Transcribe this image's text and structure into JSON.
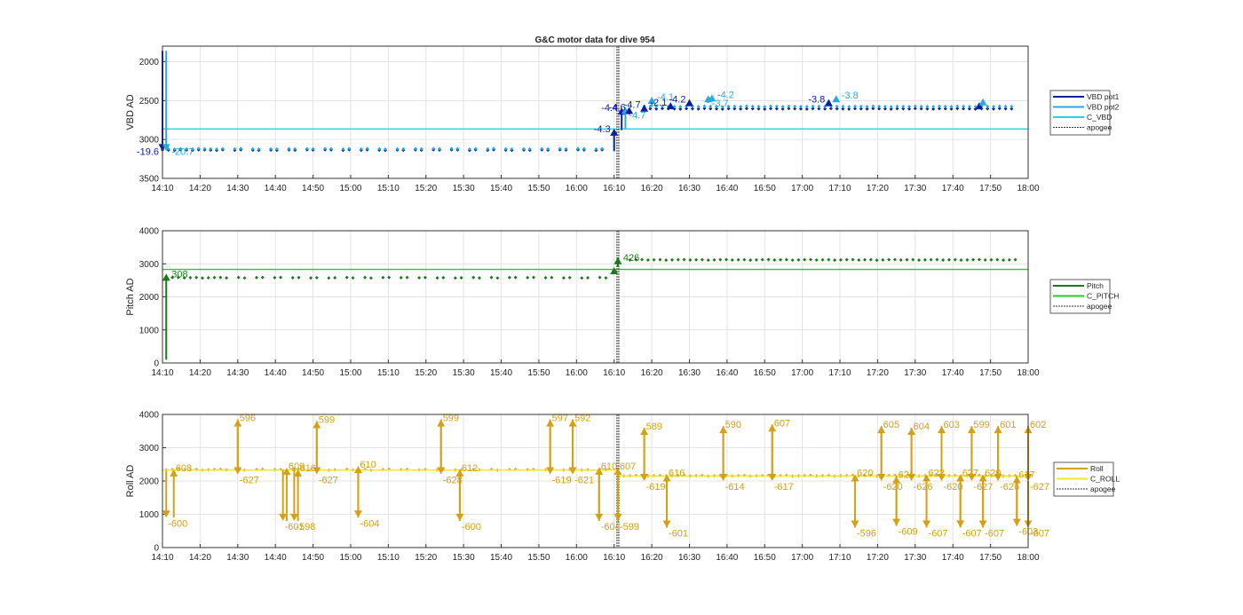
{
  "figure": {
    "title": "G&C motor data for dive 954"
  },
  "chart_data": [
    {
      "type": "scatter",
      "ylabel": "VBD AD",
      "ylim": [
        1800,
        3500
      ],
      "yreverse": true,
      "yticks": [
        2000,
        2500,
        3000,
        3500
      ],
      "xlim": [
        "14:10",
        "18:00"
      ],
      "xticks": [
        "14:10",
        "14:20",
        "14:30",
        "14:40",
        "14:50",
        "15:00",
        "15:10",
        "15:20",
        "15:30",
        "15:40",
        "15:50",
        "16:00",
        "16:10",
        "16:20",
        "16:30",
        "16:40",
        "16:50",
        "17:00",
        "17:10",
        "17:20",
        "17:30",
        "17:40",
        "17:50",
        "18:00"
      ],
      "grid": true,
      "legend_position": "outside-right",
      "series": [
        {
          "name": "VBD pot1",
          "color": "#0a1f9e",
          "kind": "points",
          "x_range": [
            "14:10",
            "17:57"
          ],
          "y_before": 3135,
          "y_after": 2605,
          "gaps": [
            "16:07",
            "16:17"
          ]
        },
        {
          "name": "VBD pot2",
          "color": "#29a9e0",
          "kind": "points",
          "x_range": [
            "14:10",
            "17:57"
          ],
          "y_before": 3120,
          "y_after": 2575,
          "gaps": [
            "16:07",
            "16:17"
          ]
        },
        {
          "name": "C_VBD",
          "color": "#22d3e4",
          "kind": "hline",
          "y": 2865
        },
        {
          "name": "apogee",
          "color": "#555555",
          "kind": "vline",
          "x": "16:11"
        }
      ],
      "arrows": [
        {
          "x": "14:10",
          "y1": 1860,
          "y2": 3150,
          "label": "-19.6",
          "color": "#0a1f9e",
          "label_side": "left"
        },
        {
          "x": "14:11",
          "y1": 1860,
          "y2": 3150,
          "label": "-20.7",
          "color": "#29a9e0",
          "label_side": "right"
        },
        {
          "x": "16:10",
          "y1": 3150,
          "y2": 2860,
          "label": "-4.3",
          "color": "#0a1f9e",
          "label_side": "left"
        },
        {
          "x": "16:12",
          "y1": 2880,
          "y2": 2590,
          "label": "-4.4",
          "color": "#0a1f9e",
          "label_side": "left"
        },
        {
          "x": "16:13",
          "y1": 2860,
          "y2": 2580,
          "label": "-4.7",
          "color": "#29a9e0",
          "label_side": "below"
        },
        {
          "x": "16:14",
          "y1": 2680,
          "y2": 2580,
          "label": "-4.6",
          "color": "#0a1f9e",
          "label_side": "left"
        },
        {
          "x": "16:18",
          "y1": 2640,
          "y2": 2550,
          "label": "-4.7",
          "color": "#0a1f9e",
          "label_side": "left"
        },
        {
          "x": "16:20",
          "y1": 2580,
          "y2": 2450,
          "label": "-4.1",
          "color": "#29a9e0",
          "label_side": "right"
        },
        {
          "x": "16:25",
          "y1": 2590,
          "y2": 2520,
          "label": "-2.1",
          "color": "#0a1f9e",
          "label_side": "left"
        },
        {
          "x": "16:30",
          "y1": 2560,
          "y2": 2480,
          "label": "-4.2",
          "color": "#0a1f9e",
          "label_side": "left"
        },
        {
          "x": "16:35",
          "y1": 2530,
          "y2": 2430,
          "label": "-3.7",
          "color": "#29a9e0",
          "label_side": "below"
        },
        {
          "x": "16:36",
          "y1": 2500,
          "y2": 2420,
          "label": "-4.2",
          "color": "#29a9e0",
          "label_side": "right"
        },
        {
          "x": "17:07",
          "y1": 2560,
          "y2": 2480,
          "label": "-3.8",
          "color": "#0a1f9e",
          "label_side": "left"
        },
        {
          "x": "17:09",
          "y1": 2520,
          "y2": 2430,
          "label": "-3.8",
          "color": "#29a9e0",
          "label_side": "right"
        },
        {
          "x": "17:47",
          "y1": 2600,
          "y2": 2520,
          "label": "",
          "color": "#0a1f9e",
          "label_side": "left"
        },
        {
          "x": "17:48",
          "y1": 2560,
          "y2": 2470,
          "label": "",
          "color": "#29a9e0",
          "label_side": "left"
        }
      ]
    },
    {
      "type": "scatter",
      "ylabel": "Pitch AD",
      "ylim": [
        0,
        4000
      ],
      "yreverse": false,
      "yticks": [
        0,
        1000,
        2000,
        3000,
        4000
      ],
      "xlim": [
        "14:10",
        "18:00"
      ],
      "xticks": [
        "14:10",
        "14:20",
        "14:30",
        "14:40",
        "14:50",
        "15:00",
        "15:10",
        "15:20",
        "15:30",
        "15:40",
        "15:50",
        "16:00",
        "16:10",
        "16:20",
        "16:30",
        "16:40",
        "16:50",
        "17:00",
        "17:10",
        "17:20",
        "17:30",
        "17:40",
        "17:50",
        "18:00"
      ],
      "grid": true,
      "legend_position": "outside-right",
      "series": [
        {
          "name": "Pitch",
          "color": "#1a7a1a",
          "kind": "points",
          "x_range": [
            "14:11",
            "17:57"
          ],
          "y_before": 2580,
          "y_after": 3120,
          "gaps": [
            "16:09",
            "16:13"
          ]
        },
        {
          "name": "C_PITCH",
          "color": "#22cc22",
          "kind": "hline",
          "y": 2830
        },
        {
          "name": "apogee",
          "color": "#555555",
          "kind": "vline",
          "x": "16:11"
        }
      ],
      "arrows": [
        {
          "x": "14:11",
          "y1": 100,
          "y2": 2700,
          "label": "308",
          "color": "#1a7a1a",
          "label_side": "right"
        },
        {
          "x": "16:10",
          "y1": 2700,
          "y2": 2900,
          "label": "",
          "color": "#1a7a1a",
          "label_side": "right"
        },
        {
          "x": "16:11",
          "y1": 2900,
          "y2": 3200,
          "label": "426",
          "color": "#1a7a1a",
          "label_side": "right"
        }
      ]
    },
    {
      "type": "scatter",
      "ylabel": "Roll AD",
      "ylim": [
        0,
        4000
      ],
      "yreverse": false,
      "yticks": [
        0,
        1000,
        2000,
        3000,
        4000
      ],
      "xlim": [
        "14:10",
        "18:00"
      ],
      "xticks": [
        "14:10",
        "14:20",
        "14:30",
        "14:40",
        "14:50",
        "15:00",
        "15:10",
        "15:20",
        "15:30",
        "15:40",
        "15:50",
        "16:00",
        "16:10",
        "16:20",
        "16:30",
        "16:40",
        "16:50",
        "17:00",
        "17:10",
        "17:20",
        "17:30",
        "17:40",
        "17:50",
        "18:00"
      ],
      "grid": true,
      "legend_position": "outside-right",
      "series": [
        {
          "name": "Roll",
          "color": "#d4a017",
          "kind": "points",
          "x_range": [
            "14:11",
            "17:57"
          ],
          "y_before": 2340,
          "y_after": 2160,
          "gaps": [
            "16:08",
            "16:12"
          ]
        },
        {
          "name": "C_ROLL",
          "color": "#f2e52a",
          "kind": "hline_split",
          "y_before": 2330,
          "y_after": 2150,
          "split": "16:11"
        },
        {
          "name": "apogee",
          "color": "#555555",
          "kind": "vline",
          "x": "16:11"
        }
      ],
      "arrows": [
        {
          "x": "14:11",
          "y1": 2300,
          "y2": 900,
          "label": "-600",
          "color": "#d4a017",
          "label_side": "below-right"
        },
        {
          "x": "14:13",
          "y1": 900,
          "y2": 2350,
          "label": "608",
          "color": "#d4a017",
          "label_side": "above-right"
        },
        {
          "x": "14:30",
          "y1": 2340,
          "y2": 3850,
          "label": "596",
          "color": "#d4a017",
          "label_side": "above-right"
        },
        {
          "x": "14:30",
          "y1": 3850,
          "y2": 2200,
          "label": "-627",
          "color": "#d4a017",
          "label_side": "below-right"
        },
        {
          "x": "14:42",
          "y1": 2340,
          "y2": 800,
          "label": "-601",
          "color": "#d4a017",
          "label_side": "below-right"
        },
        {
          "x": "14:43",
          "y1": 800,
          "y2": 2400,
          "label": "609",
          "color": "#d4a017",
          "label_side": "above-right"
        },
        {
          "x": "14:45",
          "y1": 2400,
          "y2": 800,
          "label": "-598",
          "color": "#d4a017",
          "label_side": "below-right"
        },
        {
          "x": "14:46",
          "y1": 800,
          "y2": 2350,
          "label": "616",
          "color": "#d4a017",
          "label_side": "above-right"
        },
        {
          "x": "14:51",
          "y1": 2340,
          "y2": 3800,
          "label": "599",
          "color": "#d4a017",
          "label_side": "above-right"
        },
        {
          "x": "14:51",
          "y1": 3800,
          "y2": 2200,
          "label": "-627",
          "color": "#d4a017",
          "label_side": "below-right"
        },
        {
          "x": "15:02",
          "y1": 2340,
          "y2": 900,
          "label": "-604",
          "color": "#d4a017",
          "label_side": "below-right"
        },
        {
          "x": "15:02",
          "y1": 900,
          "y2": 2450,
          "label": "610",
          "color": "#d4a017",
          "label_side": "above-right"
        },
        {
          "x": "15:24",
          "y1": 2340,
          "y2": 3850,
          "label": "599",
          "color": "#d4a017",
          "label_side": "above-right"
        },
        {
          "x": "15:24",
          "y1": 3850,
          "y2": 2200,
          "label": "-628",
          "color": "#d4a017",
          "label_side": "below-right"
        },
        {
          "x": "15:29",
          "y1": 2340,
          "y2": 800,
          "label": "-600",
          "color": "#d4a017",
          "label_side": "below-right"
        },
        {
          "x": "15:29",
          "y1": 800,
          "y2": 2350,
          "label": "612",
          "color": "#d4a017",
          "label_side": "above-right"
        },
        {
          "x": "15:53",
          "y1": 2340,
          "y2": 3850,
          "label": "597",
          "color": "#d4a017",
          "label_side": "above-right"
        },
        {
          "x": "15:53",
          "y1": 3850,
          "y2": 2200,
          "label": "-619",
          "color": "#d4a017",
          "label_side": "below-right"
        },
        {
          "x": "15:59",
          "y1": 2340,
          "y2": 3850,
          "label": "592",
          "color": "#d4a017",
          "label_side": "above-right"
        },
        {
          "x": "15:59",
          "y1": 3850,
          "y2": 2200,
          "label": "-621",
          "color": "#d4a017",
          "label_side": "below-right"
        },
        {
          "x": "16:06",
          "y1": 2340,
          "y2": 800,
          "label": "-604",
          "color": "#d4a017",
          "label_side": "below-right"
        },
        {
          "x": "16:06",
          "y1": 800,
          "y2": 2400,
          "label": "610",
          "color": "#d4a017",
          "label_side": "above-right"
        },
        {
          "x": "16:11",
          "y1": 2340,
          "y2": 800,
          "label": "-599",
          "color": "#d4a017",
          "label_side": "below-right"
        },
        {
          "x": "16:11",
          "y1": 800,
          "y2": 2400,
          "label": "607",
          "color": "#d4a017",
          "label_side": "above-right"
        },
        {
          "x": "16:18",
          "y1": 2160,
          "y2": 3600,
          "label": "589",
          "color": "#d4a017",
          "label_side": "above-right"
        },
        {
          "x": "16:18",
          "y1": 3600,
          "y2": 2000,
          "label": "-619",
          "color": "#d4a017",
          "label_side": "below-right"
        },
        {
          "x": "16:24",
          "y1": 2160,
          "y2": 600,
          "label": "-601",
          "color": "#d4a017",
          "label_side": "below-right"
        },
        {
          "x": "16:24",
          "y1": 600,
          "y2": 2200,
          "label": "616",
          "color": "#d4a017",
          "label_side": "above-right"
        },
        {
          "x": "16:39",
          "y1": 2160,
          "y2": 3650,
          "label": "590",
          "color": "#d4a017",
          "label_side": "above-right"
        },
        {
          "x": "16:39",
          "y1": 3650,
          "y2": 2000,
          "label": "-614",
          "color": "#d4a017",
          "label_side": "below-right"
        },
        {
          "x": "16:52",
          "y1": 2160,
          "y2": 3700,
          "label": "607",
          "color": "#d4a017",
          "label_side": "above-right"
        },
        {
          "x": "16:52",
          "y1": 3700,
          "y2": 2000,
          "label": "-617",
          "color": "#d4a017",
          "label_side": "below-right"
        },
        {
          "x": "17:14",
          "y1": 2160,
          "y2": 600,
          "label": "-596",
          "color": "#d4a017",
          "label_side": "below-right"
        },
        {
          "x": "17:14",
          "y1": 600,
          "y2": 2200,
          "label": "620",
          "color": "#d4a017",
          "label_side": "above-right"
        },
        {
          "x": "17:21",
          "y1": 2160,
          "y2": 3650,
          "label": "605",
          "color": "#d4a017",
          "label_side": "above-right"
        },
        {
          "x": "17:21",
          "y1": 3650,
          "y2": 2000,
          "label": "-620",
          "color": "#d4a017",
          "label_side": "below-right"
        },
        {
          "x": "17:25",
          "y1": 2160,
          "y2": 650,
          "label": "-609",
          "color": "#d4a017",
          "label_side": "below-right"
        },
        {
          "x": "17:25",
          "y1": 650,
          "y2": 2150,
          "label": "621",
          "color": "#d4a017",
          "label_side": "above-right"
        },
        {
          "x": "17:29",
          "y1": 2160,
          "y2": 3600,
          "label": "604",
          "color": "#d4a017",
          "label_side": "above-right"
        },
        {
          "x": "17:29",
          "y1": 3600,
          "y2": 2000,
          "label": "-626",
          "color": "#d4a017",
          "label_side": "below-right"
        },
        {
          "x": "17:33",
          "y1": 2160,
          "y2": 600,
          "label": "-607",
          "color": "#d4a017",
          "label_side": "below-right"
        },
        {
          "x": "17:33",
          "y1": 600,
          "y2": 2200,
          "label": "622",
          "color": "#d4a017",
          "label_side": "above-right"
        },
        {
          "x": "17:37",
          "y1": 2160,
          "y2": 3650,
          "label": "603",
          "color": "#d4a017",
          "label_side": "above-right"
        },
        {
          "x": "17:37",
          "y1": 3650,
          "y2": 2000,
          "label": "-620",
          "color": "#d4a017",
          "label_side": "below-right"
        },
        {
          "x": "17:42",
          "y1": 2160,
          "y2": 600,
          "label": "-607",
          "color": "#d4a017",
          "label_side": "below-right"
        },
        {
          "x": "17:42",
          "y1": 600,
          "y2": 2200,
          "label": "627",
          "color": "#d4a017",
          "label_side": "above-right"
        },
        {
          "x": "17:45",
          "y1": 2160,
          "y2": 3650,
          "label": "599",
          "color": "#d4a017",
          "label_side": "above-right"
        },
        {
          "x": "17:45",
          "y1": 3650,
          "y2": 2000,
          "label": "-627",
          "color": "#d4a017",
          "label_side": "below-right"
        },
        {
          "x": "17:48",
          "y1": 2160,
          "y2": 600,
          "label": "-607",
          "color": "#d4a017",
          "label_side": "below-right"
        },
        {
          "x": "17:48",
          "y1": 600,
          "y2": 2200,
          "label": "620",
          "color": "#d4a017",
          "label_side": "above-right"
        },
        {
          "x": "17:52",
          "y1": 2160,
          "y2": 3650,
          "label": "601",
          "color": "#d4a017",
          "label_side": "above-right"
        },
        {
          "x": "17:52",
          "y1": 3650,
          "y2": 2000,
          "label": "-626",
          "color": "#d4a017",
          "label_side": "below-right"
        },
        {
          "x": "17:57",
          "y1": 2160,
          "y2": 650,
          "label": "-603",
          "color": "#d4a017",
          "label_side": "below-right"
        },
        {
          "x": "17:57",
          "y1": 650,
          "y2": 2150,
          "label": "617",
          "color": "#d4a017",
          "label_side": "above-right"
        },
        {
          "x": "18:00",
          "y1": 2160,
          "y2": 3650,
          "label": "602",
          "color": "#d4a017",
          "label_side": "above-right"
        },
        {
          "x": "18:00",
          "y1": 3650,
          "y2": 2000,
          "label": "-627",
          "color": "#d4a017",
          "label_side": "below-right"
        },
        {
          "x": "18:00",
          "y1": 2000,
          "y2": 600,
          "label": "-607",
          "color": "#d4a017",
          "label_side": "below-right"
        }
      ]
    }
  ]
}
